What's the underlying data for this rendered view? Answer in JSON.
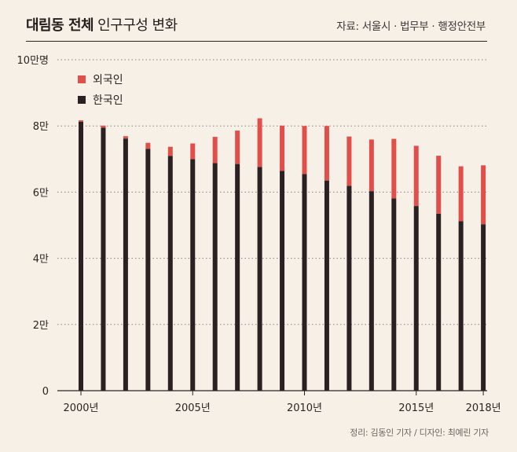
{
  "header": {
    "title_bold": "대림동 전체",
    "title_rest": "인구구성 변화",
    "source": "자료: 서울시 · 법무부 · 행정안전부"
  },
  "footer": {
    "credit": "정리: 김동인 기자 / 디자인: 최예린 기자"
  },
  "colors": {
    "korean": "#2b2122",
    "foreign": "#e24f4a",
    "background": "#f6f0e6",
    "grid": "#8a8280"
  },
  "chart_data": {
    "type": "bar",
    "stacked": true,
    "title": "대림동 전체 인구구성 변화",
    "ylim": [
      0,
      100000
    ],
    "y_ticks": [
      {
        "value": 0,
        "label": "0"
      },
      {
        "value": 20000,
        "label": "2만"
      },
      {
        "value": 40000,
        "label": "4만"
      },
      {
        "value": 60000,
        "label": "6만"
      },
      {
        "value": 80000,
        "label": "8만"
      },
      {
        "value": 100000,
        "label": "10만명"
      }
    ],
    "x_ticks": [
      {
        "year": 2000,
        "label": "2000년"
      },
      {
        "year": 2005,
        "label": "2005년"
      },
      {
        "year": 2010,
        "label": "2010년"
      },
      {
        "year": 2015,
        "label": "2015년"
      },
      {
        "year": 2018,
        "label": "2018년"
      }
    ],
    "legend": {
      "position": "top-left",
      "foreign": "외국인",
      "korean": "한국인"
    },
    "categories": [
      2000,
      2001,
      2002,
      2003,
      2004,
      2005,
      2006,
      2007,
      2008,
      2009,
      2010,
      2011,
      2012,
      2013,
      2014,
      2015,
      2016,
      2017,
      2018
    ],
    "series": [
      {
        "name": "한국인",
        "values": [
          81300,
          79500,
          76200,
          73100,
          70900,
          70000,
          68800,
          68500,
          67600,
          66400,
          65500,
          63500,
          61900,
          60300,
          58100,
          55800,
          53500,
          51200,
          50300
        ]
      },
      {
        "name": "외국인",
        "values": [
          400,
          600,
          700,
          1800,
          2800,
          4700,
          7900,
          10100,
          14700,
          13700,
          14500,
          16500,
          14900,
          15600,
          18000,
          18200,
          17500,
          16600,
          17800
        ]
      }
    ]
  }
}
